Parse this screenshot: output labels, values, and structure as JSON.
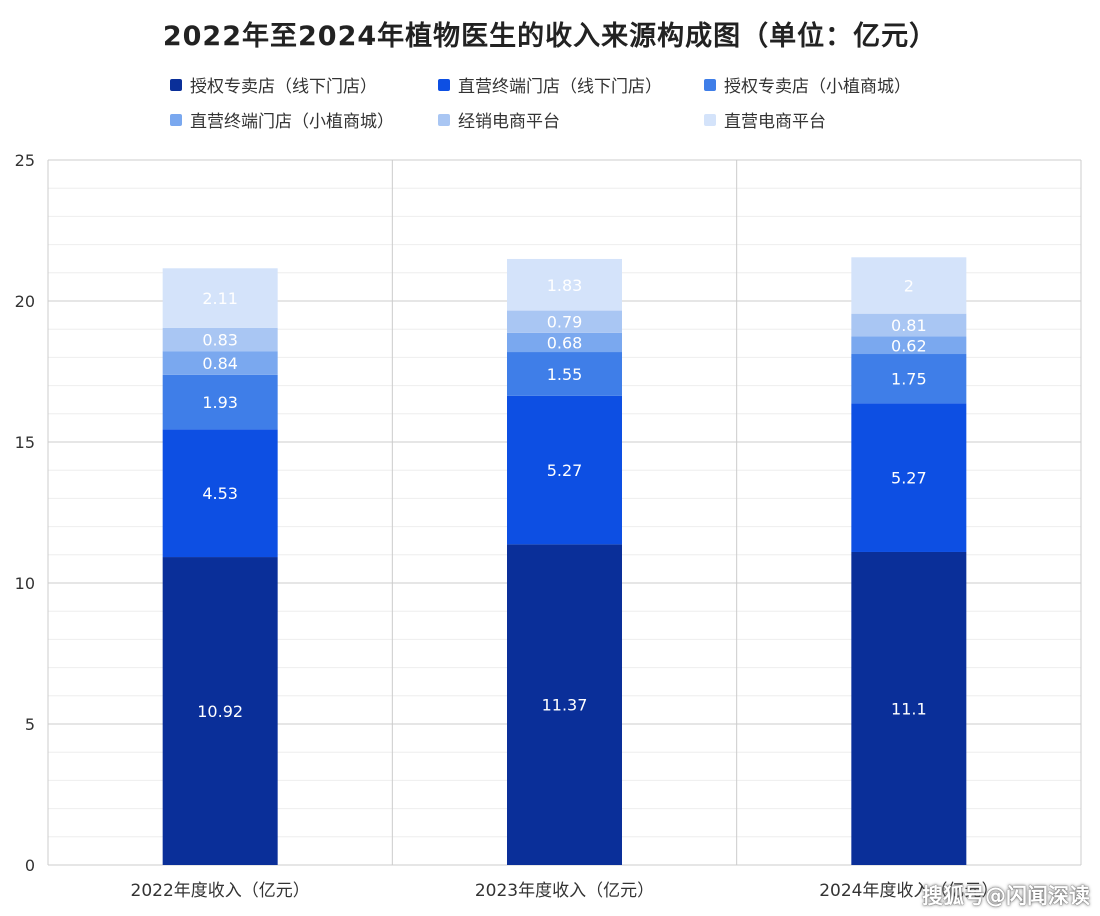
{
  "title": "2022年至2024年植物医生的收入来源构成图（单位：亿元）",
  "watermark": "搜狐号@闪闻深读",
  "colors": {
    "授权专卖店（线下门店）": "#0a2f99",
    "直营终端门店（线下门店）": "#0d4fe3",
    "授权专卖店（小植商城）": "#3f7ee8",
    "直营终端门店（小植商城）": "#7aa8ef",
    "经销电商平台": "#a9c6f3",
    "直营电商平台": "#d4e3fa",
    "gridline": "#cccccc",
    "axis_text": "#333333"
  },
  "legend": [
    "授权专卖店（线下门店）",
    "直营终端门店（线下门店）",
    "授权专卖店（小植商城）",
    "直营终端门店（小植商城）",
    "经销电商平台",
    "直营电商平台"
  ],
  "chart_data": {
    "type": "bar",
    "stacked": true,
    "title": "2022年至2024年植物医生的收入来源构成图（单位：亿元）",
    "categories": [
      "2022年度收入（亿元）",
      "2023年度收入（亿元）",
      "2024年度收入（亿元）"
    ],
    "ylim": [
      0,
      25
    ],
    "yticks": [
      0,
      5,
      10,
      15,
      20,
      25
    ],
    "grid": true,
    "legend_position": "top",
    "series": [
      {
        "name": "授权专卖店（线下门店）",
        "values": [
          10.92,
          11.37,
          11.1
        ],
        "labels": [
          "10.92",
          "11.37",
          "11.1"
        ]
      },
      {
        "name": "直营终端门店（线下门店）",
        "values": [
          4.53,
          5.27,
          5.27
        ],
        "labels": [
          "4.53",
          "5.27",
          "5.27"
        ]
      },
      {
        "name": "授权专卖店（小植商城）",
        "values": [
          1.93,
          1.55,
          1.75
        ],
        "labels": [
          "1.93",
          "1.55",
          "1.75"
        ]
      },
      {
        "name": "直营终端门店（小植商城）",
        "values": [
          0.84,
          0.68,
          0.62
        ],
        "labels": [
          "0.84",
          "0.68",
          "0.62"
        ]
      },
      {
        "name": "经销电商平台",
        "values": [
          0.83,
          0.79,
          0.81
        ],
        "labels": [
          "0.83",
          "0.79",
          "0.81"
        ]
      },
      {
        "name": "直营电商平台",
        "values": [
          2.11,
          1.83,
          2
        ],
        "labels": [
          "2.11",
          "1.83",
          "2"
        ]
      }
    ]
  }
}
